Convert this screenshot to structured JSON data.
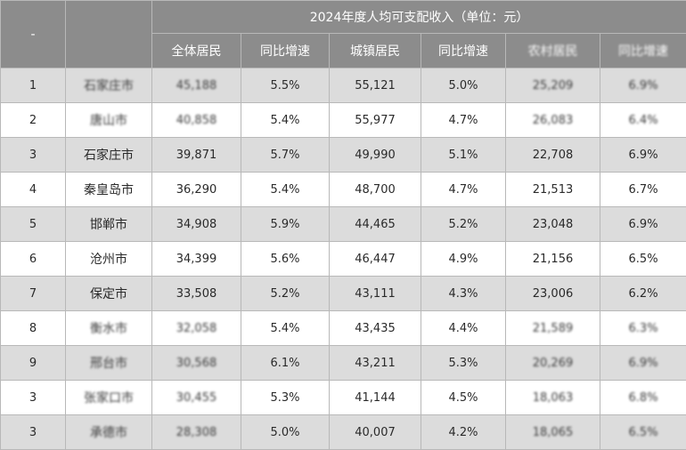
{
  "header": {
    "group_title": "2024年度人均可支配收入（单位：元）",
    "rank_col": "-",
    "city_col": "",
    "columns": [
      "全体居民",
      "同比增速",
      "城镇居民",
      "同比增速",
      "农村居民",
      "同比增速"
    ]
  },
  "rows": [
    {
      "rank": "1",
      "city": "石家庄市",
      "all": "45,188",
      "all_growth": "5.5%",
      "urban": "55,121",
      "urban_growth": "5.0%",
      "rural": "25,209",
      "rural_growth": "6.9%"
    },
    {
      "rank": "2",
      "city": "唐山市",
      "all": "40,858",
      "all_growth": "5.4%",
      "urban": "55,977",
      "urban_growth": "4.7%",
      "rural": "26,083",
      "rural_growth": "6.4%"
    },
    {
      "rank": "3",
      "city": "石家庄市",
      "all": "39,871",
      "all_growth": "5.7%",
      "urban": "49,990",
      "urban_growth": "5.1%",
      "rural": "22,708",
      "rural_growth": "6.9%"
    },
    {
      "rank": "4",
      "city": "秦皇岛市",
      "all": "36,290",
      "all_growth": "5.4%",
      "urban": "48,700",
      "urban_growth": "4.7%",
      "rural": "21,513",
      "rural_growth": "6.7%"
    },
    {
      "rank": "5",
      "city": "邯郸市",
      "all": "34,908",
      "all_growth": "5.9%",
      "urban": "44,465",
      "urban_growth": "5.2%",
      "rural": "23,048",
      "rural_growth": "6.9%"
    },
    {
      "rank": "6",
      "city": "沧州市",
      "all": "34,399",
      "all_growth": "5.6%",
      "urban": "46,447",
      "urban_growth": "4.9%",
      "rural": "21,156",
      "rural_growth": "6.5%"
    },
    {
      "rank": "7",
      "city": "保定市",
      "all": "33,508",
      "all_growth": "5.2%",
      "urban": "43,111",
      "urban_growth": "4.3%",
      "rural": "23,006",
      "rural_growth": "6.2%"
    },
    {
      "rank": "8",
      "city": "衡水市",
      "all": "32,058",
      "all_growth": "5.4%",
      "urban": "43,435",
      "urban_growth": "4.4%",
      "rural": "21,589",
      "rural_growth": "6.3%"
    },
    {
      "rank": "9",
      "city": "邢台市",
      "all": "30,568",
      "all_growth": "6.1%",
      "urban": "43,211",
      "urban_growth": "5.3%",
      "rural": "20,269",
      "rural_growth": "6.9%"
    },
    {
      "rank": "3",
      "city": "张家口市",
      "all": "30,455",
      "all_growth": "5.3%",
      "urban": "41,144",
      "urban_growth": "4.5%",
      "rural": "18,063",
      "rural_growth": "6.8%"
    },
    {
      "rank": "3",
      "city": "承德市",
      "all": "28,308",
      "all_growth": "5.0%",
      "urban": "40,007",
      "urban_growth": "4.2%",
      "rural": "18,065",
      "rural_growth": "6.5%"
    }
  ],
  "blurred_cells": [
    [
      0,
      "city"
    ],
    [
      0,
      "all"
    ],
    [
      0,
      "rural"
    ],
    [
      0,
      "rural_growth"
    ],
    [
      1,
      "city"
    ],
    [
      1,
      "all"
    ],
    [
      1,
      "rural"
    ],
    [
      1,
      "rural_growth"
    ],
    [
      7,
      "city"
    ],
    [
      7,
      "all"
    ],
    [
      7,
      "rural"
    ],
    [
      7,
      "rural_growth"
    ],
    [
      8,
      "city"
    ],
    [
      8,
      "all"
    ],
    [
      8,
      "rural"
    ],
    [
      8,
      "rural_growth"
    ],
    [
      9,
      "city"
    ],
    [
      9,
      "all"
    ],
    [
      9,
      "rural"
    ],
    [
      9,
      "rural_growth"
    ],
    [
      10,
      "city"
    ],
    [
      10,
      "all"
    ],
    [
      10,
      "rural"
    ],
    [
      10,
      "rural_growth"
    ]
  ],
  "colors": {
    "header_bg": "#8c8c8c",
    "row_alt_bg": "#dcdcdc",
    "grid": "#b8b8b8"
  }
}
